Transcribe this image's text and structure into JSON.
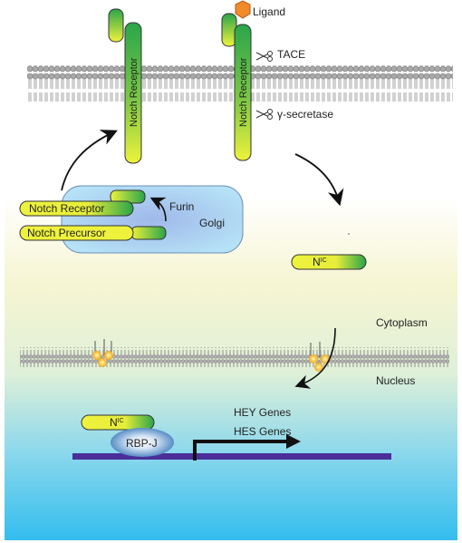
{
  "labels": {
    "ligand": "Ligand",
    "tace": "TACE",
    "gamma_secretase": "γ-secretase",
    "notch_receptor_vertical": "Notch Receptor",
    "furin": "Furin",
    "golgi": "Golgi",
    "notch_receptor": "Notch Receptor",
    "notch_precursor": "Notch Precursor",
    "nic": "N",
    "nic_sup": "IC",
    "cytoplasm": "Cytoplasm",
    "nucleus": "Nucleus",
    "rbpj": "RBP-J",
    "hey_genes": "HEY Genes",
    "hes_genes": "HES Genes"
  },
  "colors": {
    "membrane": "#9a9a9a",
    "receptor_yellow": "#e8f040",
    "receptor_green": "#2aa54a",
    "ligand": "#f08a2a",
    "golgi_fill": "#a8d8f0",
    "rbpj_blue": "#2c6fb5",
    "dna": "#4b2e9a",
    "gradient_top": "#ffffff",
    "gradient_mid": "#f5f3c8",
    "gradient_bottom": "#38c0ec"
  }
}
